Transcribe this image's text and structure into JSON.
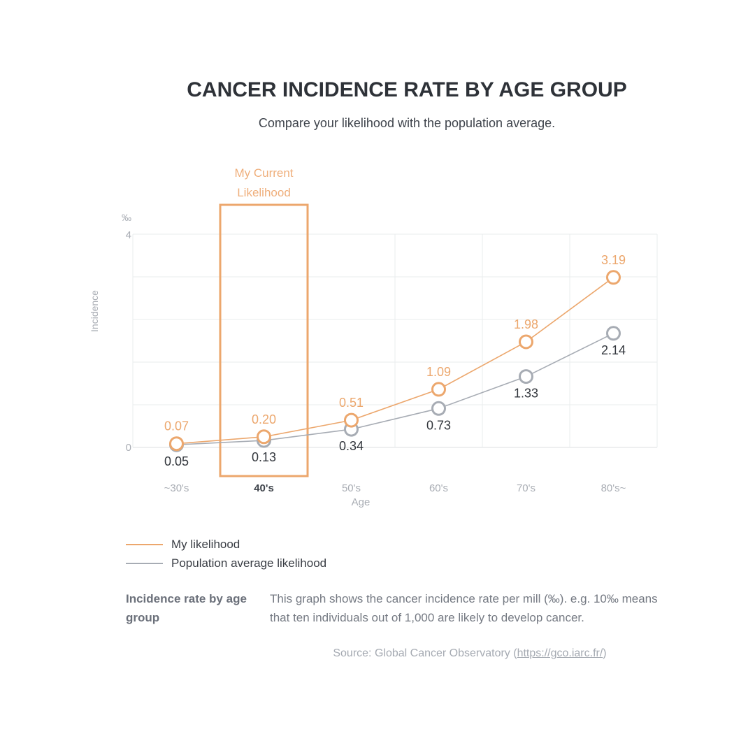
{
  "header": {
    "title": "CANCER INCIDENCE RATE BY AGE GROUP",
    "subtitle": "Compare your likelihood with the population average."
  },
  "chart_data": {
    "type": "line",
    "unit": "‰",
    "ylabel": "Incidence",
    "xlabel": "Age",
    "x": [
      "~30's",
      "40's",
      "50's",
      "60's",
      "70's",
      "80's~"
    ],
    "ylim": [
      0,
      4
    ],
    "y_tick_labels": [
      "4",
      "0"
    ],
    "grid_step": 0.8,
    "grid": true,
    "series": [
      {
        "name": "My likelihood",
        "slug": "my-likelihood",
        "color": "#ECA76D",
        "label_color": "#ECA76D",
        "label_position": "above",
        "values": [
          0.07,
          0.2,
          0.51,
          1.09,
          1.98,
          3.19
        ],
        "labels": [
          "0.07",
          "0.20",
          "0.51",
          "1.09",
          "1.98",
          "3.19"
        ]
      },
      {
        "name": "Population average likelihood",
        "slug": "population-average-likelihood",
        "color": "#A7ACB4",
        "label_color": "#32363C",
        "label_position": "below",
        "values": [
          0.05,
          0.13,
          0.34,
          0.73,
          1.33,
          2.14
        ],
        "labels": [
          "0.05",
          "0.13",
          "0.34",
          "0.73",
          "1.33",
          "2.14"
        ]
      }
    ],
    "annotation": {
      "line1": "My Current",
      "line2": "Likelihood",
      "category_index": 1,
      "color": "#ECA76D",
      "text_color": "#EFAF7C"
    },
    "colors": {
      "grid": "#EAECEE",
      "axis_line": "#DDDFE2",
      "tick": "#A9ADB4",
      "tick_highlight": "#3F444B"
    }
  },
  "legend": {
    "items": [
      {
        "label": "My likelihood",
        "color": "#ECA76D"
      },
      {
        "label": "Population average likelihood",
        "color": "#A7ACB4"
      }
    ]
  },
  "footnote": {
    "term": "Incidence rate by age group",
    "description": "This graph shows the cancer incidence rate per mill (‰). e.g. 10‰ means that ten individuals out of 1,000 are likely to develop cancer.",
    "source_prefix": "Source: Global Cancer Observatory (",
    "source_link": "https://gco.iarc.fr/",
    "source_suffix": ")"
  }
}
